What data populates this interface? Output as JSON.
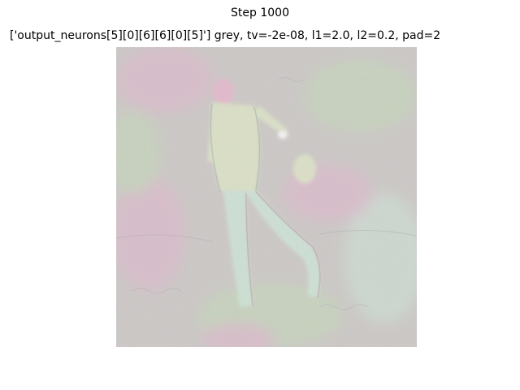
{
  "figure": {
    "suptitle": "Step 1000",
    "axes_title": "['output_neurons[5][0][6][6][0][5]'] grey, tv=-2e-08, l1=2.0, l2=0.2, pad=2",
    "image": {
      "content": "feature-visualization",
      "colors": {
        "base": "#cdc9c7",
        "pink": "#e4b6cf",
        "green": "#c4dbb7",
        "mint": "#cfe6d9",
        "figure_light": "#dfe6c7",
        "figure_pink": "#e9b7cf"
      }
    }
  }
}
